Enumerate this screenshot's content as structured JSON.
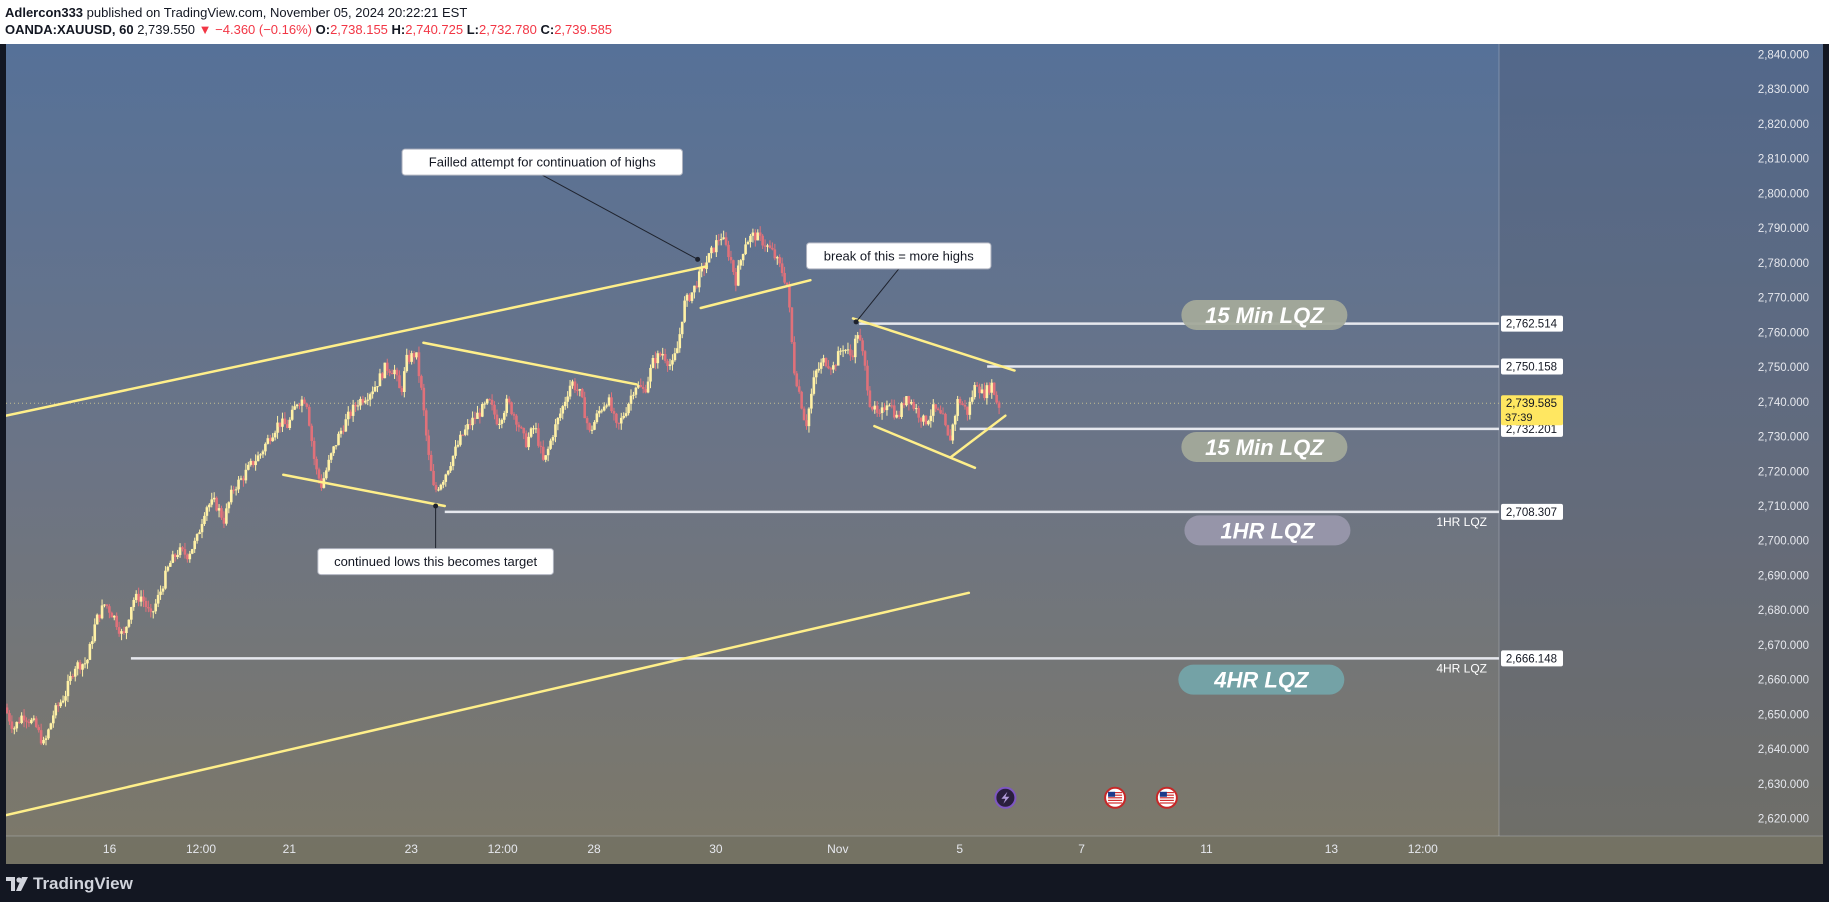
{
  "header": {
    "author": "Adlercon333",
    "published_text": "published on TradingView.com, November 05, 2024 20:22:21 EST",
    "symbol": "OANDA:XAUUSD, 60",
    "last_price": "2,739.550",
    "change": "▼ −4.360 (−0.16%)",
    "o_label": "O:",
    "o_value": "2,738.155",
    "h_label": "H:",
    "h_value": "2,740.725",
    "l_label": "L:",
    "l_value": "2,732.780",
    "c_label": "C:",
    "c_value": "2,739.585"
  },
  "footer": {
    "brand": "TradingView"
  },
  "colors": {
    "bull_candle": "#fff1a6",
    "bear_candle": "#e0717a",
    "trendline": "#ffef8a",
    "level_line": "#e6e8ee",
    "price_tag_current": "#ffe761"
  },
  "chart_data": {
    "type": "candlestick",
    "symbol": "OANDA:XAUUSD",
    "interval": "60",
    "ylim": [
      2615,
      2843
    ],
    "y_ticks": [
      2620,
      2630,
      2640,
      2650,
      2660,
      2670,
      2680,
      2690,
      2700,
      2710,
      2720,
      2730,
      2740,
      2750,
      2760,
      2770,
      2780,
      2790,
      2800,
      2810,
      2820,
      2830,
      2840
    ],
    "y_tick_labels": [
      "2,620.000",
      "2,630.000",
      "2,640.000",
      "2,650.000",
      "2,660.000",
      "2,670.000",
      "2,680.000",
      "2,690.000",
      "2,700.000",
      "2,710.000",
      "2,720.000",
      "2,730.000",
      "2,740.000",
      "2,750.000",
      "2,760.000",
      "2,770.000",
      "2,780.000",
      "2,790.000",
      "2,800.000",
      "2,810.000",
      "2,820.000",
      "2,830.000",
      "2,840.000"
    ],
    "xlim": [
      0,
      490
    ],
    "x_ticks": [
      {
        "label": "16",
        "x": 34
      },
      {
        "label": "12:00",
        "x": 64
      },
      {
        "label": "21",
        "x": 93
      },
      {
        "label": "23",
        "x": 133
      },
      {
        "label": "12:00",
        "x": 163
      },
      {
        "label": "28",
        "x": 193
      },
      {
        "label": "30",
        "x": 233
      },
      {
        "label": "Nov",
        "x": 273
      },
      {
        "label": "5",
        "x": 313
      },
      {
        "label": "7",
        "x": 353
      },
      {
        "label": "11",
        "x": 394
      },
      {
        "label": "13",
        "x": 435
      },
      {
        "label": "12:00",
        "x": 465
      }
    ],
    "price_path": [
      [
        0,
        2652
      ],
      [
        3,
        2646
      ],
      [
        6,
        2650
      ],
      [
        10,
        2647
      ],
      [
        13,
        2641
      ],
      [
        16,
        2650
      ],
      [
        20,
        2656
      ],
      [
        23,
        2664
      ],
      [
        27,
        2665
      ],
      [
        30,
        2677
      ],
      [
        33,
        2682
      ],
      [
        36,
        2678
      ],
      [
        39,
        2672
      ],
      [
        42,
        2683
      ],
      [
        45,
        2684
      ],
      [
        48,
        2678
      ],
      [
        51,
        2685
      ],
      [
        54,
        2693
      ],
      [
        57,
        2697
      ],
      [
        60,
        2696
      ],
      [
        63,
        2700
      ],
      [
        66,
        2710
      ],
      [
        69,
        2711
      ],
      [
        72,
        2706
      ],
      [
        75,
        2715
      ],
      [
        78,
        2718
      ],
      [
        81,
        2722
      ],
      [
        84,
        2725
      ],
      [
        87,
        2730
      ],
      [
        90,
        2734
      ],
      [
        93,
        2733
      ],
      [
        96,
        2740
      ],
      [
        99,
        2741
      ],
      [
        102,
        2721
      ],
      [
        104,
        2716
      ],
      [
        107,
        2724
      ],
      [
        110,
        2731
      ],
      [
        113,
        2736
      ],
      [
        116,
        2740
      ],
      [
        119,
        2742
      ],
      [
        122,
        2745
      ],
      [
        125,
        2750
      ],
      [
        128,
        2749
      ],
      [
        130,
        2742
      ],
      [
        132,
        2752
      ],
      [
        135,
        2754
      ],
      [
        137,
        2742
      ],
      [
        139,
        2725
      ],
      [
        141,
        2714
      ],
      [
        144,
        2718
      ],
      [
        147,
        2724
      ],
      [
        150,
        2730
      ],
      [
        153,
        2734
      ],
      [
        156,
        2737
      ],
      [
        159,
        2740
      ],
      [
        162,
        2734
      ],
      [
        165,
        2740
      ],
      [
        168,
        2735
      ],
      [
        171,
        2728
      ],
      [
        174,
        2733
      ],
      [
        177,
        2722
      ],
      [
        180,
        2731
      ],
      [
        183,
        2738
      ],
      [
        186,
        2746
      ],
      [
        189,
        2742
      ],
      [
        192,
        2731
      ],
      [
        195,
        2737
      ],
      [
        198,
        2741
      ],
      [
        201,
        2732
      ],
      [
        204,
        2738
      ],
      [
        207,
        2745
      ],
      [
        210,
        2743
      ],
      [
        213,
        2752
      ],
      [
        216,
        2754
      ],
      [
        219,
        2750
      ],
      [
        221,
        2756
      ],
      [
        223,
        2768
      ],
      [
        226,
        2772
      ],
      [
        229,
        2778
      ],
      [
        232,
        2783
      ],
      [
        235,
        2788
      ],
      [
        238,
        2782
      ],
      [
        240,
        2775
      ],
      [
        243,
        2786
      ],
      [
        246,
        2788
      ],
      [
        249,
        2786
      ],
      [
        252,
        2783
      ],
      [
        255,
        2778
      ],
      [
        257,
        2773
      ],
      [
        259,
        2750
      ],
      [
        261,
        2742
      ],
      [
        263,
        2733
      ],
      [
        266,
        2748
      ],
      [
        269,
        2752
      ],
      [
        272,
        2750
      ],
      [
        275,
        2756
      ],
      [
        278,
        2753
      ],
      [
        280,
        2760
      ],
      [
        282,
        2752
      ],
      [
        284,
        2740
      ],
      [
        287,
        2735
      ],
      [
        290,
        2741
      ],
      [
        293,
        2735
      ],
      [
        296,
        2742
      ],
      [
        299,
        2738
      ],
      [
        302,
        2734
      ],
      [
        305,
        2738
      ],
      [
        308,
        2735
      ],
      [
        310,
        2728
      ],
      [
        313,
        2741
      ],
      [
        316,
        2737
      ],
      [
        319,
        2746
      ],
      [
        321,
        2742
      ],
      [
        324,
        2745
      ],
      [
        326,
        2739
      ]
    ],
    "current_price": 2739.585,
    "current_price_label": "2,739.585",
    "countdown": "37:39",
    "price_tags": [
      {
        "label": "2,762.514",
        "value": 2762.514
      },
      {
        "label": "2,750.158",
        "value": 2750.158
      },
      {
        "label": "2,732.201",
        "value": 2732.201
      },
      {
        "label": "2,708.307",
        "value": 2708.307
      },
      {
        "label": "2,666.148",
        "value": 2666.148
      }
    ],
    "horizontal_levels": [
      {
        "value": 2762.514,
        "x_from": 280,
        "x_to": 490,
        "end_label": ""
      },
      {
        "value": 2750.158,
        "x_from": 322,
        "x_to": 490,
        "end_label": ""
      },
      {
        "value": 2732.201,
        "x_from": 313,
        "x_to": 490,
        "end_label": ""
      },
      {
        "value": 2708.307,
        "x_from": 144,
        "x_to": 490,
        "end_label": "1HR LQZ"
      },
      {
        "value": 2666.148,
        "x_from": 41,
        "x_to": 490,
        "end_label": "4HR LQZ"
      }
    ],
    "trendlines": [
      {
        "from": [
          0,
          2736
        ],
        "to": [
          230,
          2779
        ]
      },
      {
        "from": [
          137,
          2757
        ],
        "to": [
          207,
          2745
        ]
      },
      {
        "from": [
          91,
          2719
        ],
        "to": [
          144,
          2710
        ]
      },
      {
        "from": [
          228,
          2767
        ],
        "to": [
          264,
          2775
        ]
      },
      {
        "from": [
          278,
          2764
        ],
        "to": [
          331,
          2749
        ]
      },
      {
        "from": [
          285,
          2733
        ],
        "to": [
          318,
          2721
        ]
      },
      {
        "from": [
          310,
          2724
        ],
        "to": [
          328,
          2736
        ]
      },
      {
        "from": [
          0,
          2621
        ],
        "to": [
          316,
          2685
        ]
      }
    ],
    "annotations": [
      {
        "text": "Failled attempt for continuation of highs",
        "box": [
          176,
          2809
        ],
        "point": [
          227,
          2781
        ]
      },
      {
        "text": "break of this = more highs",
        "box": [
          293,
          2782
        ],
        "point": [
          279,
          2763
        ]
      },
      {
        "text": "continued lows this becomes target",
        "box": [
          141,
          2694
        ],
        "point": [
          141,
          2710
        ]
      }
    ],
    "zone_labels": [
      {
        "text": "15 Min LQZ",
        "x": 413,
        "value": 2765,
        "color": "#a3a99a"
      },
      {
        "text": "15 Min LQZ",
        "x": 413,
        "value": 2727,
        "color": "#a3a99a"
      },
      {
        "text": "1HR  LQZ",
        "x": 414,
        "value": 2703,
        "color": "#9897ab"
      },
      {
        "text": "4HR  LQZ",
        "x": 412,
        "value": 2660,
        "color": "#74a4a9"
      }
    ],
    "event_icons": [
      {
        "type": "dividend-bolt",
        "x": 328,
        "value": 2626
      },
      {
        "type": "us-flag",
        "x": 364,
        "value": 2626
      },
      {
        "type": "us-flag",
        "x": 381,
        "value": 2626
      }
    ]
  }
}
